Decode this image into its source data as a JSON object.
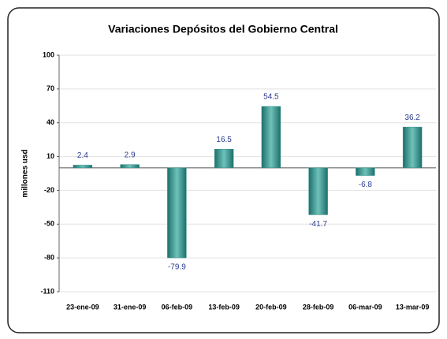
{
  "chart_data": {
    "type": "bar",
    "title": "Variaciones Depósitos del Gobierno Central",
    "y_label": "millones usd",
    "categories": [
      "23-ene-09",
      "31-ene-09",
      "06-feb-09",
      "13-feb-09",
      "20-feb-09",
      "28-feb-09",
      "06-mar-09",
      "13-mar-09"
    ],
    "values": [
      2.4,
      2.9,
      -79.9,
      16.5,
      54.5,
      -41.7,
      -6.8,
      36.2
    ],
    "color": "#2e8f88",
    "label_color": "#2b3a8f",
    "ylim": [
      -110,
      100
    ],
    "yticks": [
      -110,
      -80,
      -50,
      -20,
      10,
      40,
      70,
      100
    ],
    "grid": true
  }
}
